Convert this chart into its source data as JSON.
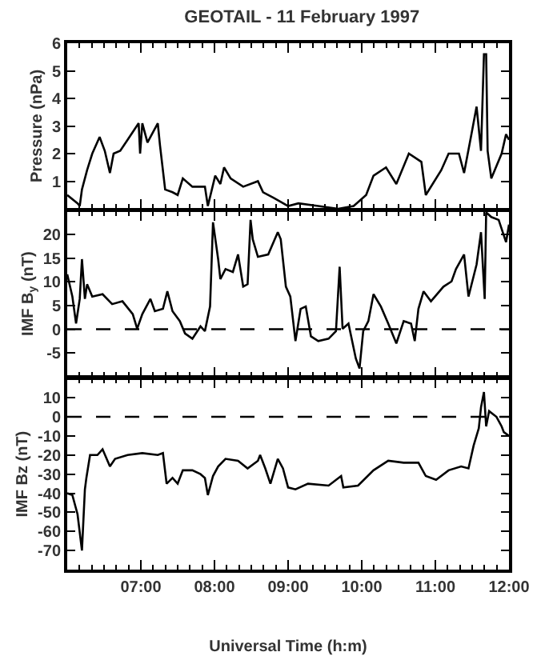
{
  "chart_data": [
    {
      "type": "line",
      "title": "GEOTAIL - 11 February 1997",
      "ylabel": "Pressure (nPa)",
      "color": "#000000",
      "tick_labels": "y",
      "xlim": [
        6,
        12
      ],
      "ylim": [
        0,
        6
      ],
      "yticks": [
        1,
        2,
        3,
        4,
        5,
        6
      ],
      "x": [
        6.0,
        6.14,
        6.17,
        6.2,
        6.27,
        6.34,
        6.44,
        6.51,
        6.58,
        6.63,
        6.72,
        6.82,
        6.97,
        6.99,
        7.02,
        7.09,
        7.23,
        7.26,
        7.33,
        7.43,
        7.5,
        7.57,
        7.7,
        7.87,
        7.91,
        8.01,
        8.08,
        8.13,
        8.22,
        8.39,
        8.59,
        8.66,
        8.8,
        9.0,
        9.14,
        9.41,
        9.68,
        9.89,
        10.06,
        10.16,
        10.33,
        10.47,
        10.64,
        10.81,
        10.87,
        11.08,
        11.18,
        11.32,
        11.39,
        11.49,
        11.56,
        11.62,
        11.66,
        11.69,
        11.71,
        11.76,
        11.9,
        11.96,
        12.0
      ],
      "values": [
        0.5,
        0.2,
        0.1,
        0.7,
        1.4,
        2.0,
        2.6,
        2.1,
        1.3,
        2.0,
        2.1,
        2.5,
        3.1,
        2.0,
        3.1,
        2.4,
        3.1,
        2.3,
        0.7,
        0.6,
        0.5,
        1.1,
        0.8,
        0.8,
        0.1,
        1.2,
        0.9,
        1.5,
        1.1,
        0.8,
        1.0,
        0.6,
        0.4,
        0.1,
        0.2,
        0.1,
        0.0,
        0.1,
        0.5,
        1.2,
        1.5,
        0.9,
        2.0,
        1.7,
        0.5,
        1.4,
        2.0,
        2.0,
        1.3,
        2.7,
        3.7,
        2.1,
        5.6,
        5.6,
        2.1,
        1.1,
        2.0,
        2.7,
        2.5
      ]
    },
    {
      "type": "line",
      "ylabel": "IMF B$_{y}$ (nT)",
      "color": "#000000",
      "tick_labels": "y",
      "xlim": [
        6,
        12
      ],
      "ylim": [
        -10,
        25
      ],
      "yticks": [
        -5,
        0,
        5,
        10,
        15,
        20
      ],
      "ref_lines": [
        {
          "axis": "y",
          "value": 0,
          "color": "#000000",
          "line_style": "dashed"
        }
      ],
      "x": [
        6.0,
        6.07,
        6.12,
        6.17,
        6.2,
        6.24,
        6.27,
        6.34,
        6.48,
        6.61,
        6.75,
        6.89,
        6.95,
        7.02,
        7.13,
        7.19,
        7.3,
        7.36,
        7.43,
        7.53,
        7.6,
        7.7,
        7.81,
        7.87,
        7.94,
        7.98,
        8.05,
        8.08,
        8.15,
        8.25,
        8.32,
        8.39,
        8.45,
        8.49,
        8.52,
        8.59,
        8.73,
        8.86,
        8.9,
        8.97,
        9.03,
        9.1,
        9.17,
        9.24,
        9.31,
        9.41,
        9.55,
        9.65,
        9.7,
        9.74,
        9.82,
        9.92,
        9.97,
        10.02,
        10.09,
        10.16,
        10.26,
        10.36,
        10.47,
        10.57,
        10.67,
        10.72,
        10.77,
        10.84,
        10.94,
        11.11,
        11.22,
        11.28,
        11.39,
        11.45,
        11.56,
        11.62,
        11.67,
        11.69,
        11.76,
        11.86,
        11.96,
        12.0
      ],
      "values": [
        11.6,
        6.9,
        1.2,
        6.4,
        14.8,
        6.4,
        9.5,
        6.9,
        7.4,
        5.3,
        5.9,
        3.2,
        0.1,
        3.2,
        6.4,
        3.8,
        4.3,
        8.0,
        3.8,
        1.7,
        -0.9,
        -2.0,
        0.6,
        -0.4,
        4.8,
        22.6,
        14.8,
        10.6,
        12.7,
        12.1,
        15.8,
        9.0,
        9.5,
        23.1,
        19.0,
        15.3,
        15.8,
        20.5,
        19.0,
        9.0,
        6.9,
        -2.5,
        4.3,
        4.8,
        -1.5,
        -2.5,
        -2.0,
        -0.4,
        13.2,
        0.1,
        1.2,
        -6.2,
        -8.3,
        -0.4,
        1.7,
        7.4,
        4.8,
        1.2,
        -3.0,
        1.7,
        1.2,
        -2.5,
        4.3,
        8.0,
        5.9,
        9.0,
        10.1,
        12.7,
        15.8,
        6.9,
        13.7,
        20.5,
        6.4,
        24.7,
        23.7,
        23.1,
        18.4,
        22.1
      ]
    },
    {
      "type": "line",
      "ylabel": "IMF Bz (nT)",
      "xlabel": "Universal Time (h:m)",
      "color": "#000000",
      "xlim": [
        6,
        12
      ],
      "ylim": [
        -80,
        20
      ],
      "yticks": [
        -70,
        -60,
        -50,
        -40,
        -30,
        -20,
        -10,
        0,
        10
      ],
      "xticks": [
        {
          "value": 7,
          "label": "07:00"
        },
        {
          "value": 8,
          "label": "08:00"
        },
        {
          "value": 9,
          "label": "09:00"
        },
        {
          "value": 10,
          "label": "10:00"
        },
        {
          "value": 11,
          "label": "11:00"
        },
        {
          "value": 12,
          "label": "12:00"
        }
      ],
      "ref_lines": [
        {
          "axis": "y",
          "value": 0,
          "color": "#000000",
          "line_style": "dashed"
        }
      ],
      "x": [
        6.0,
        6.07,
        6.14,
        6.2,
        6.24,
        6.26,
        6.31,
        6.41,
        6.48,
        6.58,
        6.65,
        6.82,
        7.02,
        7.23,
        7.3,
        7.35,
        7.43,
        7.5,
        7.57,
        7.7,
        7.81,
        7.87,
        7.91,
        7.98,
        8.05,
        8.15,
        8.32,
        8.45,
        8.59,
        8.62,
        8.69,
        8.76,
        8.86,
        8.93,
        9.0,
        9.1,
        9.27,
        9.55,
        9.72,
        9.75,
        9.95,
        10.16,
        10.36,
        10.57,
        10.77,
        10.87,
        11.01,
        11.18,
        11.35,
        11.45,
        11.52,
        11.59,
        11.62,
        11.66,
        11.69,
        11.73,
        11.83,
        11.9,
        11.93,
        12.0
      ],
      "values": [
        -40,
        -41,
        -51,
        -70,
        -38,
        -32,
        -20,
        -20,
        -17,
        -26,
        -22,
        -20,
        -19,
        -20,
        -19,
        -35,
        -32,
        -35,
        -28,
        -28,
        -30,
        -32,
        -41,
        -31,
        -26,
        -22,
        -23,
        -27,
        -23,
        -20,
        -27,
        -35,
        -22,
        -27,
        -37,
        -38,
        -35,
        -36,
        -31,
        -37,
        -36,
        -28,
        -23,
        -24,
        -24,
        -31,
        -33,
        -28,
        -26,
        -27,
        -15,
        -6,
        5,
        13,
        -5,
        3,
        0,
        -5,
        -8,
        -10
      ]
    }
  ]
}
